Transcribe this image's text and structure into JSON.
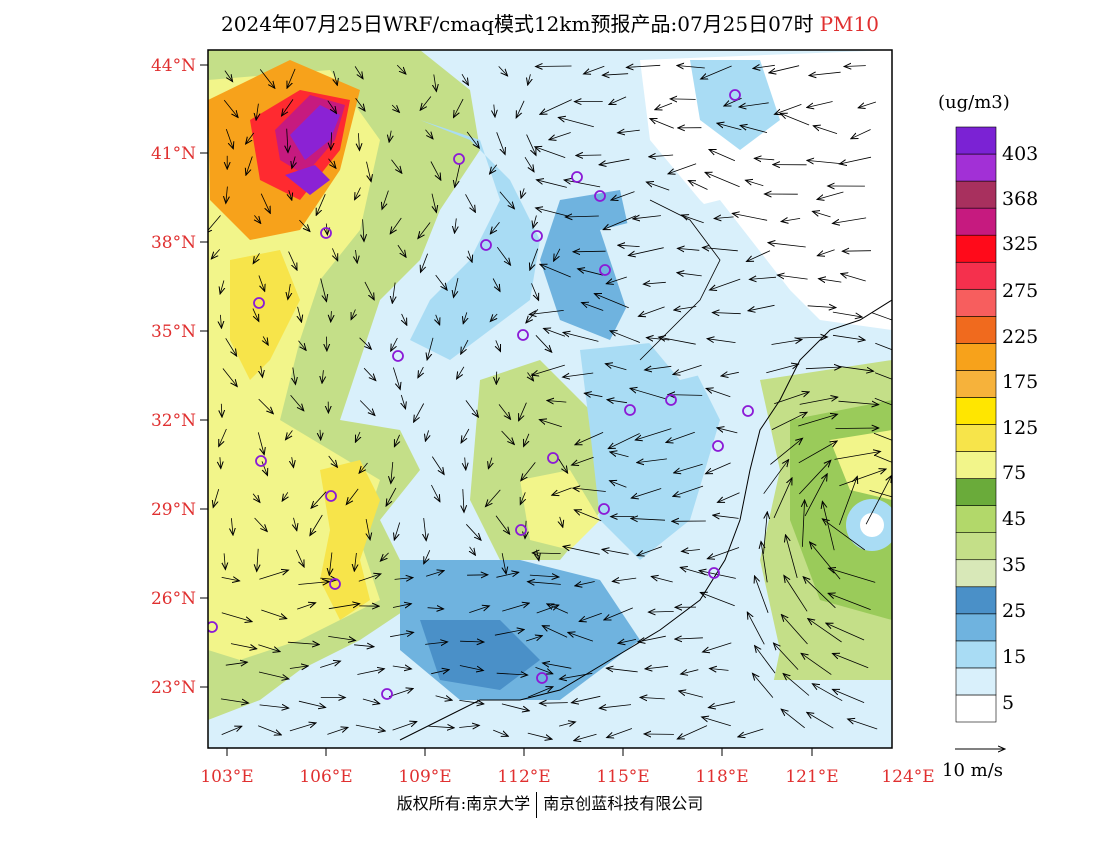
{
  "title": {
    "main": "2024年07月25日WRF/cmaq模式12km预报产品:07月25日07时",
    "variable": "PM10"
  },
  "map": {
    "lat_labels": [
      "44°N",
      "41°N",
      "38°N",
      "35°N",
      "32°N",
      "29°N",
      "26°N",
      "23°N"
    ],
    "lon_labels": [
      "103°E",
      "106°E",
      "109°E",
      "112°E",
      "115°E",
      "118°E",
      "121°E",
      "124°E"
    ],
    "field_colors": {
      "white": "#ffffff",
      "pale_blue": "#d9f0fb",
      "light_blue": "#a9dcf4",
      "mid_blue": "#6fb3df",
      "blue": "#4a90c8",
      "pale_green": "#d8e8b8",
      "light_green": "#c4df88",
      "green": "#9acb5a",
      "dark_green": "#6aab3a",
      "pale_yellow": "#f2f58a",
      "yellow": "#f7e44a",
      "bright_yellow": "#ffd800",
      "orange": "#f7a21b",
      "dark_orange": "#f06a1e",
      "red": "#ff2a30",
      "crimson": "#e21b4f",
      "magenta": "#c61a7f",
      "purple": "#8b22d4"
    },
    "station_marker_color": "#8b1ad6"
  },
  "legend": {
    "unit": "(ug/m3)",
    "colors": [
      "#ffffff",
      "#d9f0fb",
      "#a9dcf4",
      "#6fb3df",
      "#4a90c8",
      "#d8e8b8",
      "#c4df88",
      "#b2d86a",
      "#6aab3a",
      "#f2f58a",
      "#f7e44a",
      "#ffe600",
      "#f6b23b",
      "#f7a21b",
      "#f06a1e",
      "#f75e5e",
      "#f5304d",
      "#ff0a1a",
      "#c61a7f",
      "#a8305e",
      "#a230d6",
      "#7b22d4"
    ],
    "labels": [
      "5",
      "15",
      "25",
      "35",
      "45",
      "75",
      "125",
      "175",
      "225",
      "275",
      "325",
      "368",
      "403"
    ],
    "reference_vector_label": "10  m/s"
  },
  "copyright": {
    "left": "版权所有:南京大学",
    "right": "南京创蓝科技有限公司"
  }
}
